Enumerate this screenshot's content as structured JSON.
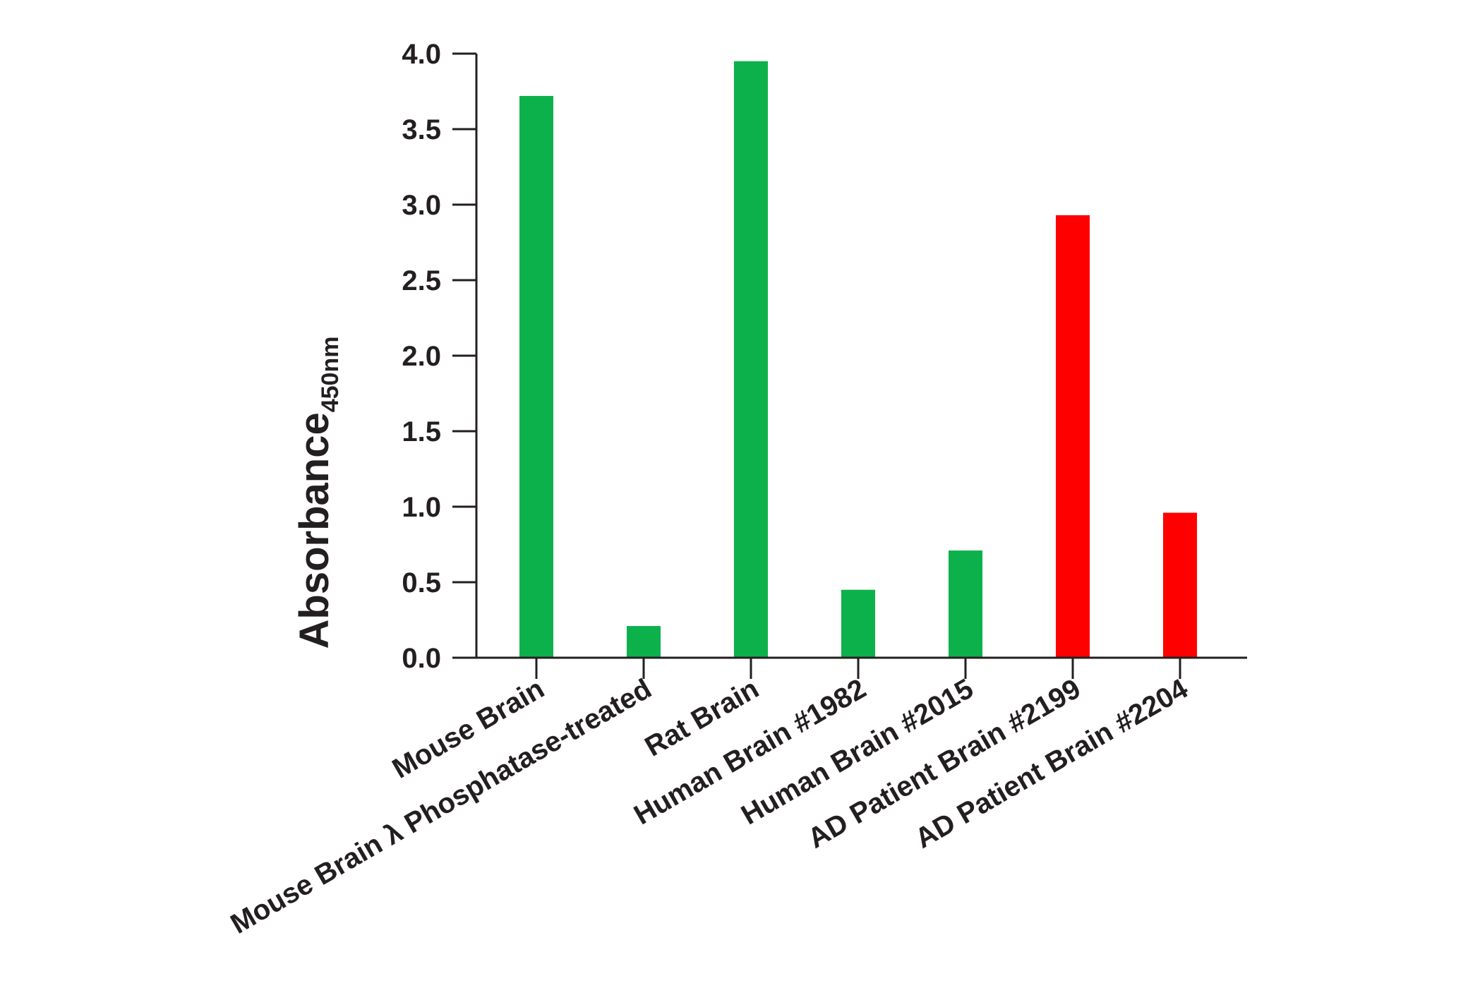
{
  "chart_data": {
    "type": "bar",
    "ylabel": "Absorbance",
    "ylabel_subscript": "450nm",
    "xlabel": "",
    "ylim": [
      0,
      4.0
    ],
    "yticks": [
      "0.0",
      "0.5",
      "1.0",
      "1.5",
      "2.0",
      "2.5",
      "3.0",
      "3.5",
      "4.0"
    ],
    "categories": [
      "Mouse Brain",
      "Mouse Brain λ Phosphatase-treated",
      "Rat Brain",
      "Human Brain #1982",
      "Human Brain #2015",
      "AD Patient Brain #2199",
      "AD Patient Brain #2204"
    ],
    "values": [
      3.72,
      0.21,
      3.95,
      0.45,
      0.71,
      2.93,
      0.96
    ],
    "bar_colors": [
      "#0db14b",
      "#0db14b",
      "#0db14b",
      "#0db14b",
      "#0db14b",
      "#fe0000",
      "#fe0000"
    ],
    "grid": false,
    "legend": "none"
  }
}
